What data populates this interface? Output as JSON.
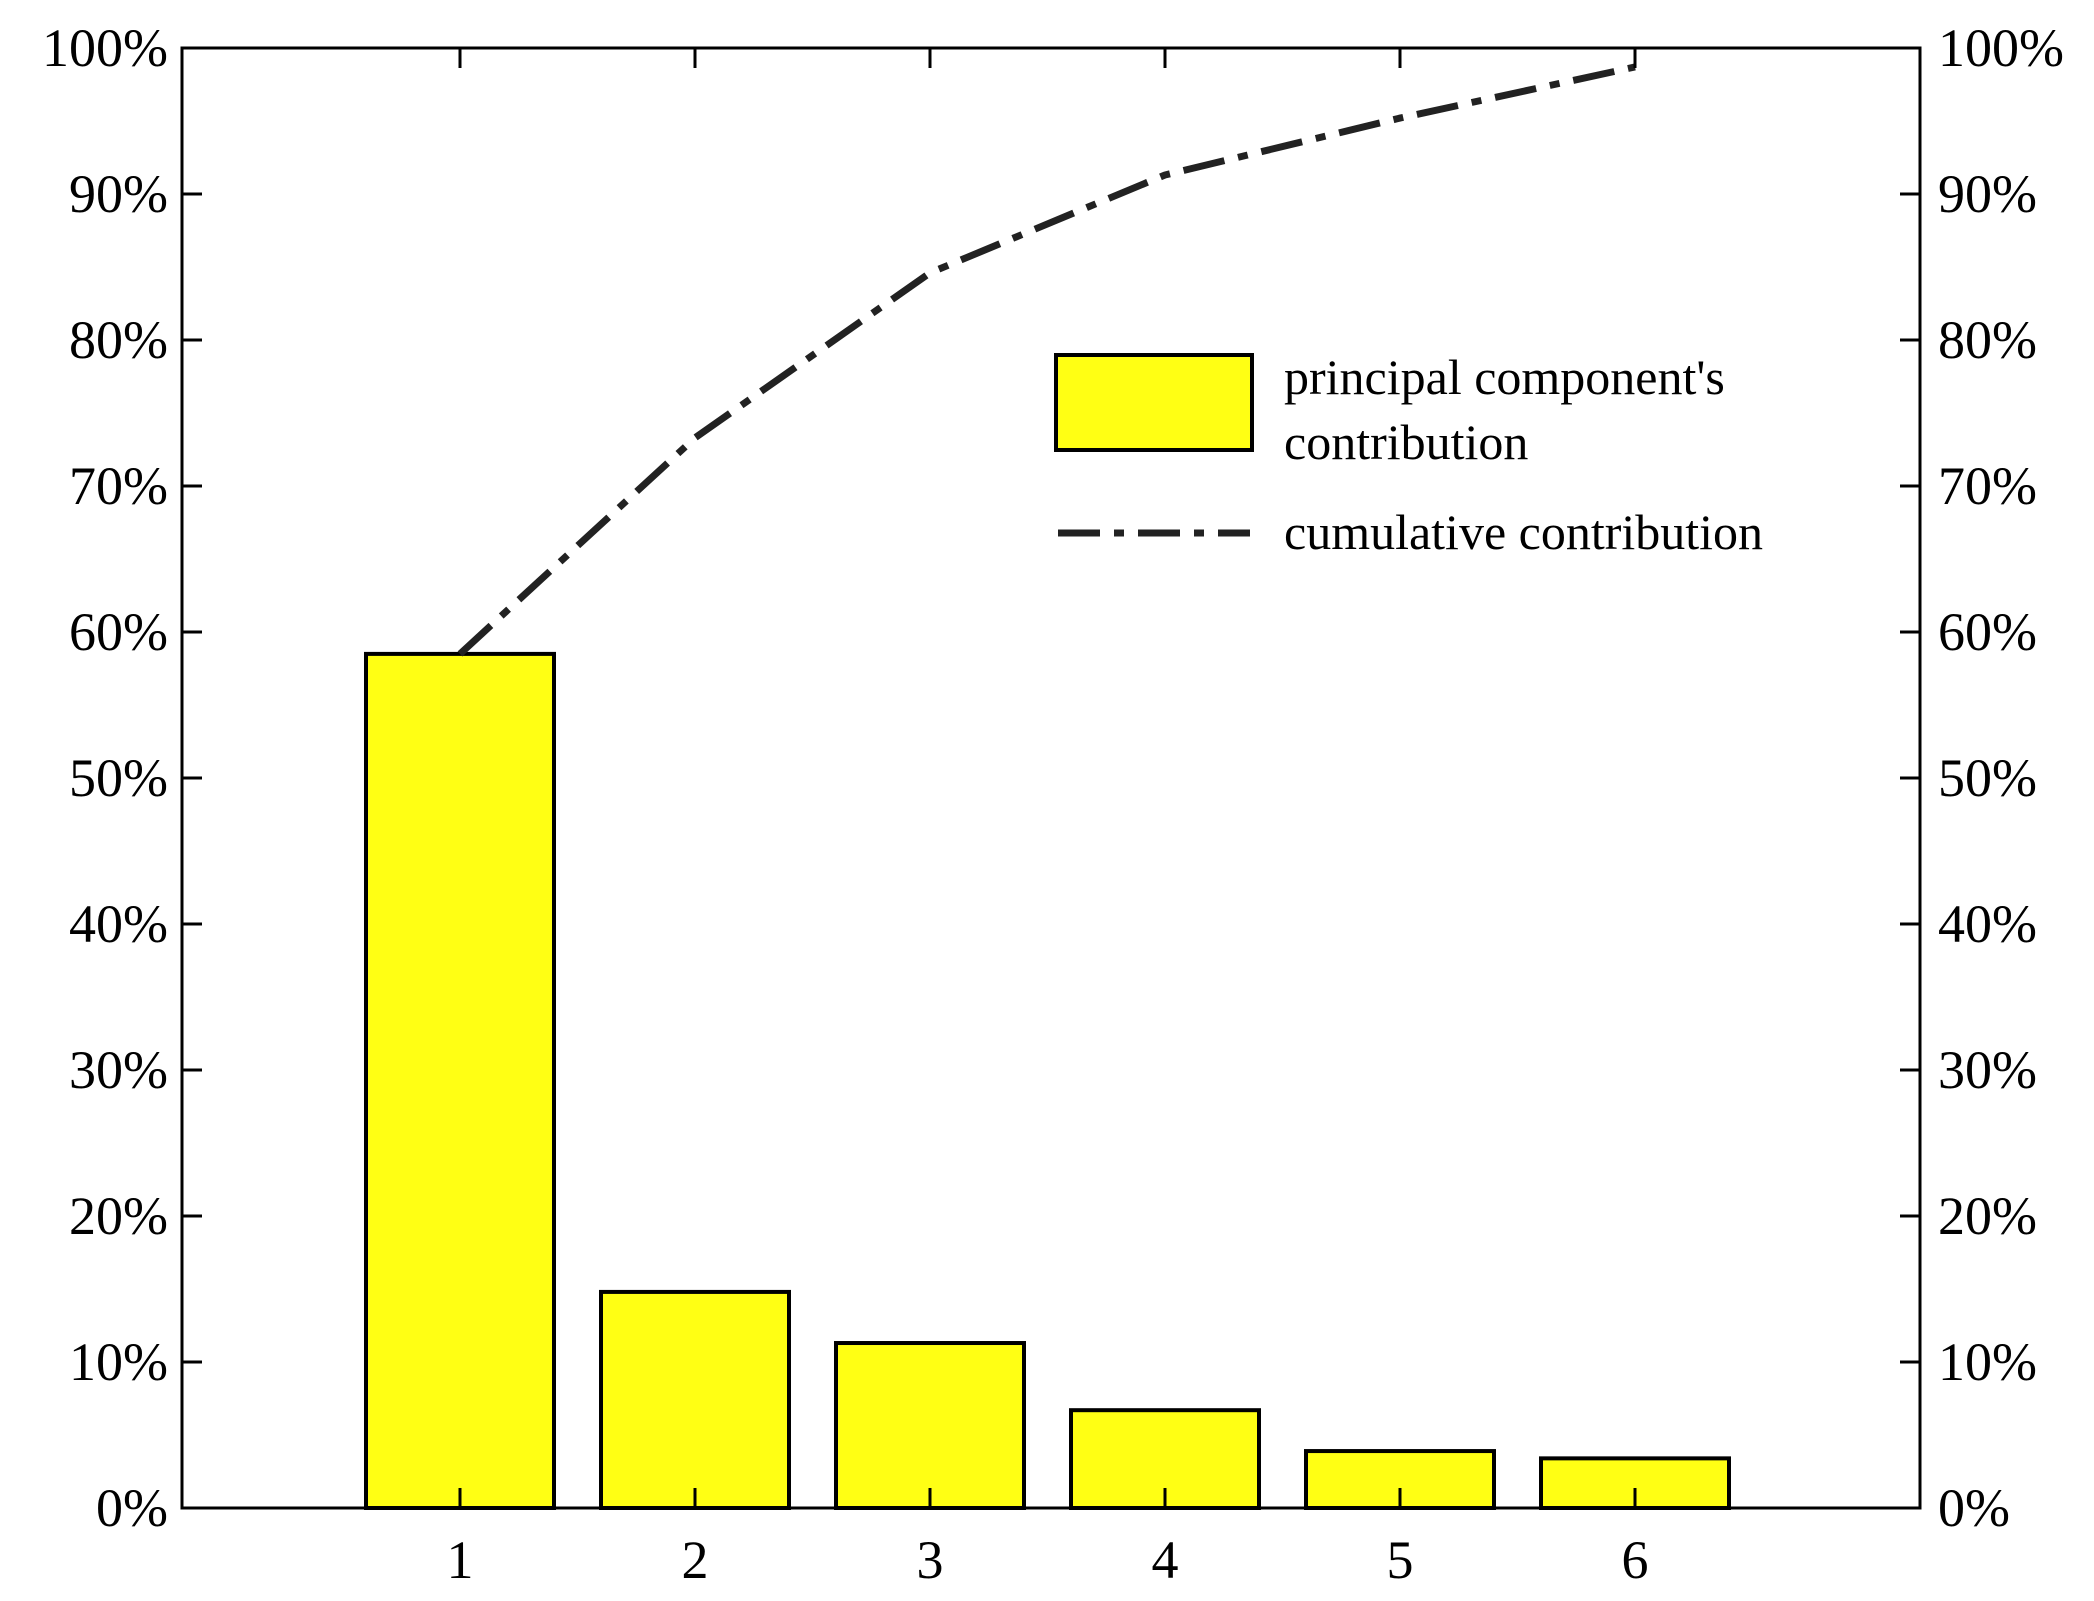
{
  "chart_data": {
    "type": "bar",
    "categories": [
      "1",
      "2",
      "3",
      "4",
      "5",
      "6"
    ],
    "series": [
      {
        "name": "principal component's contribution",
        "type": "bar",
        "values": [
          58.5,
          14.8,
          11.3,
          6.7,
          3.9,
          3.4
        ],
        "color": "#ffff14"
      },
      {
        "name": "cumulative contribution",
        "type": "line",
        "line_style": "dash-dot",
        "values": [
          58.5,
          73.3,
          84.6,
          91.3,
          95.2,
          98.7
        ],
        "color": "#222222"
      }
    ],
    "y_ticks_left": [
      "0%",
      "10%",
      "20%",
      "30%",
      "40%",
      "50%",
      "60%",
      "70%",
      "80%",
      "90%",
      "100%"
    ],
    "y_ticks_right": [
      "0%",
      "10%",
      "20%",
      "30%",
      "40%",
      "50%",
      "60%",
      "70%",
      "80%",
      "90%",
      "100%"
    ],
    "ylim": [
      0,
      100
    ],
    "title": "",
    "xlabel": "",
    "ylabel": "",
    "grid": false,
    "legend": {
      "placement": "top-right",
      "bar_label_line1": "principal component's",
      "bar_label_line2": "contribution",
      "line_label": "cumulative contribution"
    }
  }
}
